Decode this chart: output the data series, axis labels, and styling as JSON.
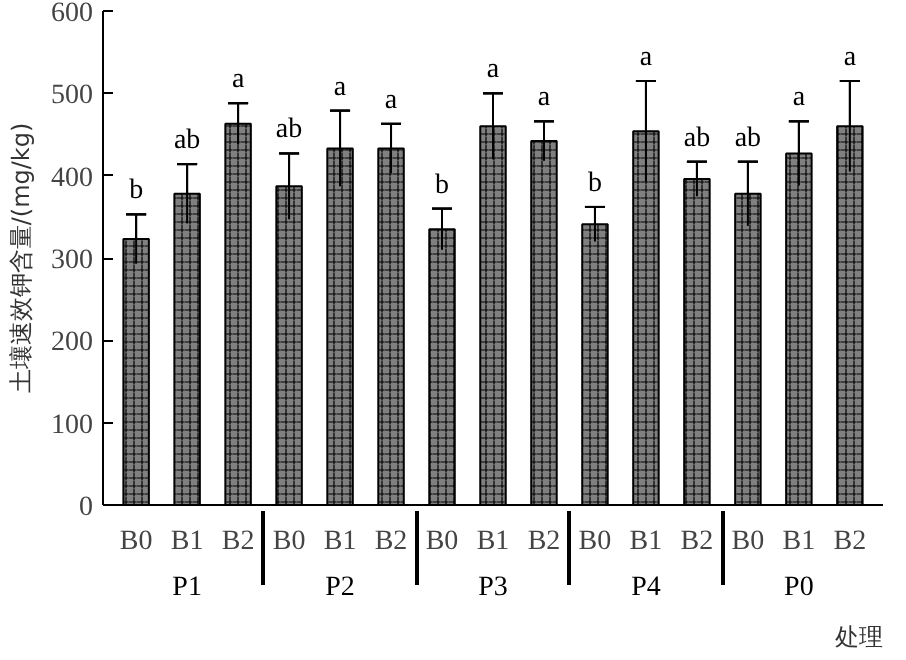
{
  "chart_data": {
    "type": "bar",
    "categories": [
      "B0",
      "B1",
      "B2",
      "B0",
      "B1",
      "B2",
      "B0",
      "B1",
      "B2",
      "B0",
      "B1",
      "B2",
      "B0",
      "B1",
      "B2"
    ],
    "annotations": [
      "P1",
      "P2",
      "P3",
      "P4",
      "P0"
    ],
    "values": [
      323,
      378,
      463,
      387,
      433,
      433,
      335,
      460,
      442,
      341,
      454,
      396,
      378,
      427,
      460
    ],
    "errors": [
      30,
      36,
      25,
      40,
      46,
      30,
      25,
      40,
      24,
      21,
      61,
      21,
      39,
      39,
      55
    ],
    "value_labels": [
      "b",
      "ab",
      "a",
      "ab",
      "a",
      "a",
      "b",
      "a",
      "a",
      "b",
      "a",
      "ab",
      "ab",
      "a",
      "a"
    ],
    "color": "#808080",
    "xlabel": "处理",
    "ylabel": "土壤速效钾含量/(mg/kg)",
    "ylim": [
      0,
      600
    ],
    "yticks": [
      0,
      100,
      200,
      300,
      400,
      500,
      600
    ],
    "grid": false
  }
}
